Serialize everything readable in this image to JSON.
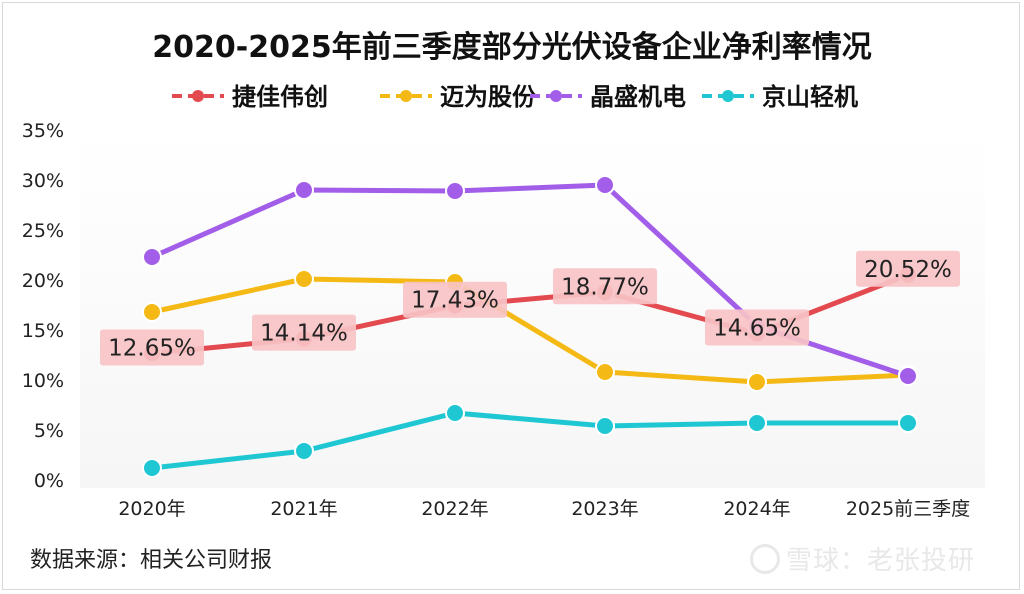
{
  "chart_data": {
    "type": "line",
    "title": "2020-2025年前三季度部分光伏设备企业净利率情况",
    "categories": [
      "2020年",
      "2021年",
      "2022年",
      "2023年",
      "2024年",
      "2025前三季度"
    ],
    "ylim": [
      0,
      35
    ],
    "yticks": [
      0,
      5,
      10,
      15,
      20,
      25,
      30,
      35
    ],
    "y_tick_labels": [
      "0%",
      "5%",
      "10%",
      "15%",
      "20%",
      "25%",
      "30%",
      "35%"
    ],
    "grid": false,
    "legend_position": "top",
    "series": [
      {
        "name": "捷佳伟创",
        "color": "#e34a4f",
        "values": [
          12.65,
          14.14,
          17.43,
          18.77,
          14.65,
          20.52
        ],
        "labels": [
          "12.65%",
          "14.14%",
          "17.43%",
          "18.77%",
          "14.65%",
          "20.52%"
        ]
      },
      {
        "name": "迈为股份",
        "color": "#f5b916",
        "values": [
          16.8,
          20.1,
          19.8,
          10.8,
          9.8,
          10.5
        ]
      },
      {
        "name": "晶盛机电",
        "color": "#a25ee8",
        "values": [
          22.3,
          29.0,
          28.9,
          29.5,
          15.4,
          10.4
        ]
      },
      {
        "name": "京山轻机",
        "color": "#1fc7d3",
        "values": [
          1.2,
          2.9,
          6.7,
          5.4,
          5.7,
          5.7
        ]
      }
    ]
  },
  "footer": {
    "source": "数据来源：相关公司财报"
  },
  "watermark": {
    "text": "雪球：老张投研"
  }
}
